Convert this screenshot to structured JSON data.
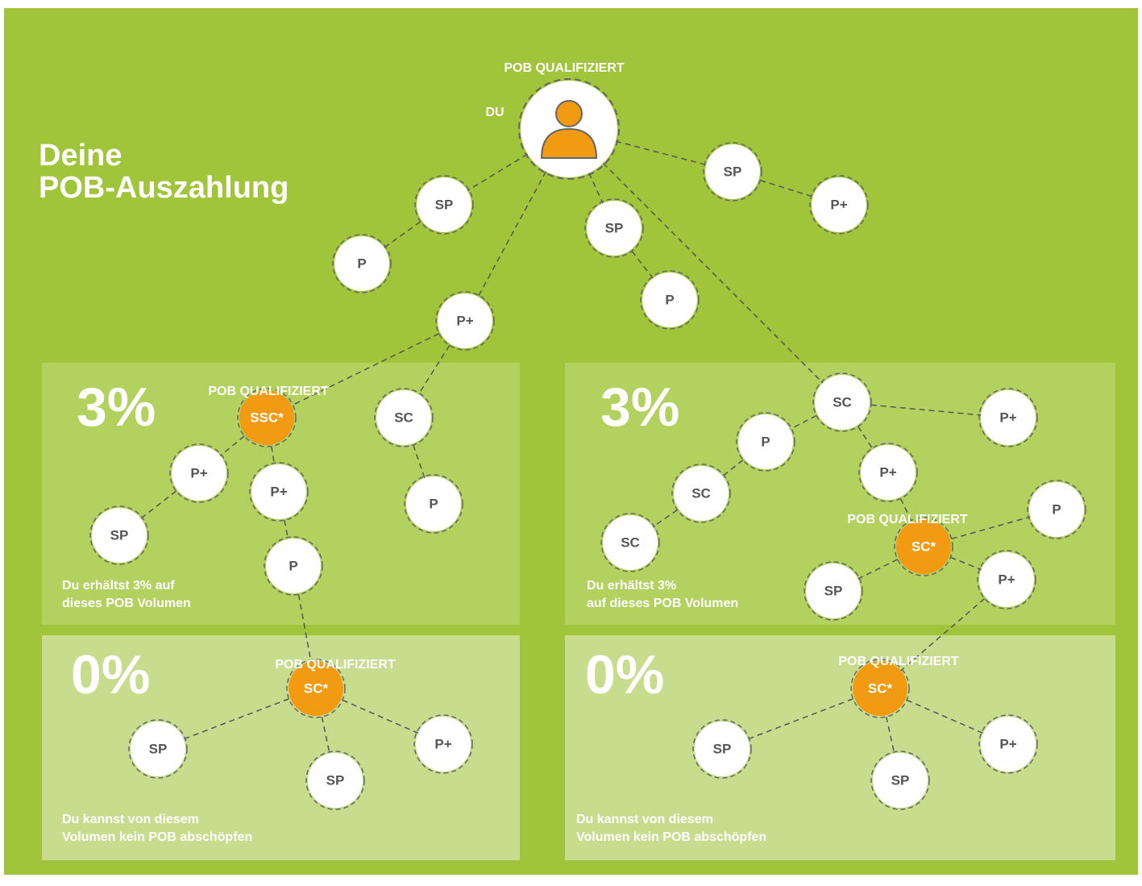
{
  "header": {
    "title": [
      "Deine",
      "POB-Auszahlung"
    ],
    "qualified": "POB QUALIFIZIERT",
    "you": "DU"
  },
  "panels": [
    {
      "percent": "3%",
      "note": [
        "Du erhältst 3% auf",
        "dieses POB Volumen"
      ],
      "qualified": "POB QUALIFIZIERT"
    },
    {
      "percent": "3%",
      "note": [
        "Du erhältst 3%",
        "auf dieses POB Volumen"
      ],
      "qualified": "POB QUALIFIZIERT"
    },
    {
      "percent": "0%",
      "note": [
        "Du kannst von diesem",
        "Volumen kein POB abschöpfen"
      ],
      "qualified": "POB QUALIFIZIERT"
    },
    {
      "percent": "0%",
      "note": [
        "Du kannst von diesem",
        "Volumen kein POB abschöpfen"
      ],
      "qualified": "POB QUALIFIZIERT"
    }
  ],
  "nodes": [
    {
      "label": "SP"
    },
    {
      "label": "P"
    },
    {
      "label": "SP"
    },
    {
      "label": "P"
    },
    {
      "label": "SP"
    },
    {
      "label": "P+"
    },
    {
      "label": "P+"
    },
    {
      "label": "SSC*"
    },
    {
      "label": "SC"
    },
    {
      "label": "P+"
    },
    {
      "label": "SP"
    },
    {
      "label": "P+"
    },
    {
      "label": "P"
    },
    {
      "label": "P"
    },
    {
      "label": "SC"
    },
    {
      "label": "P+"
    },
    {
      "label": "P"
    },
    {
      "label": "P+"
    },
    {
      "label": "SC"
    },
    {
      "label": "SC"
    },
    {
      "label": "P"
    },
    {
      "label": "SC*"
    },
    {
      "label": "SP"
    },
    {
      "label": "P+"
    },
    {
      "label": "SC*"
    },
    {
      "label": "SP"
    },
    {
      "label": "SP"
    },
    {
      "label": "P+"
    },
    {
      "label": "SC*"
    },
    {
      "label": "SP"
    },
    {
      "label": "SP"
    },
    {
      "label": "P+"
    }
  ]
}
